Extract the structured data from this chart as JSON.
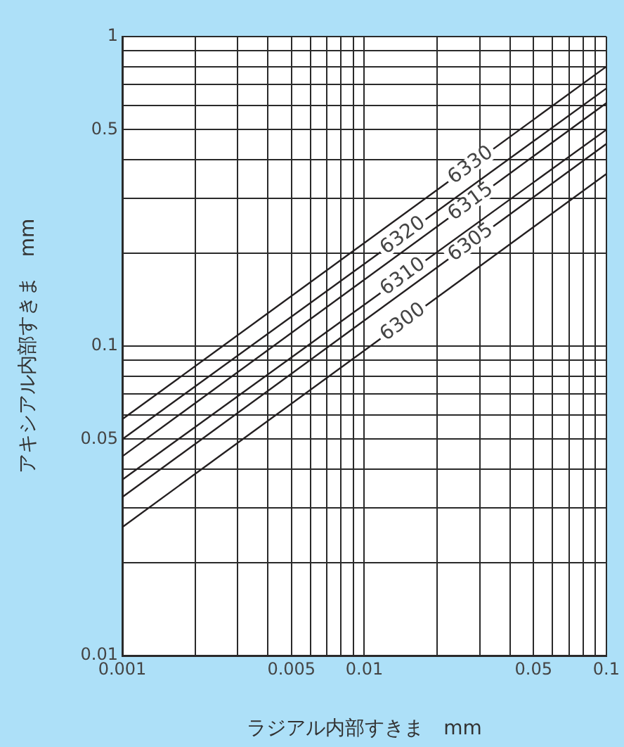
{
  "chart_data": {
    "type": "line",
    "xlabel": "ラジアル内部すきま　mm",
    "ylabel": "アキシアル内部すきま　mm",
    "log": "xy",
    "grid": true,
    "legend": false,
    "marker": "none",
    "line_style": "solid",
    "x": [
      0.001,
      0.1
    ],
    "xlim": [
      0.001,
      0.1
    ],
    "ylim": [
      0.01,
      1
    ],
    "xticks": [
      0.001,
      {
        "value": 0.002,
        "label": null
      },
      {
        "value": 0.003,
        "label": null
      },
      {
        "value": 0.004,
        "label": null
      },
      0.005,
      {
        "value": 0.006,
        "label": null
      },
      {
        "value": 0.007,
        "label": null
      },
      {
        "value": 0.008,
        "label": null
      },
      {
        "value": 0.009,
        "label": null
      },
      0.01,
      {
        "value": 0.02,
        "label": null
      },
      {
        "value": 0.03,
        "label": null
      },
      {
        "value": 0.04,
        "label": null
      },
      0.05,
      {
        "value": 0.06,
        "label": null
      },
      {
        "value": 0.07,
        "label": null
      },
      {
        "value": 0.08,
        "label": null
      },
      {
        "value": 0.09,
        "label": null
      },
      0.1
    ],
    "yticks": [
      0.01,
      {
        "value": 0.02,
        "label": null
      },
      {
        "value": 0.03,
        "label": null
      },
      {
        "value": 0.04,
        "label": null
      },
      0.05,
      {
        "value": 0.06,
        "label": null
      },
      {
        "value": 0.07,
        "label": null
      },
      {
        "value": 0.08,
        "label": null
      },
      {
        "value": 0.09,
        "label": null
      },
      0.1,
      {
        "value": 0.2,
        "label": null
      },
      {
        "value": 0.3,
        "label": null
      },
      {
        "value": 0.4,
        "label": null
      },
      0.5,
      {
        "value": 0.6,
        "label": null
      },
      {
        "value": 0.7,
        "label": null
      },
      {
        "value": 0.8,
        "label": null
      },
      {
        "value": 0.9,
        "label": null
      },
      1
    ],
    "series": [
      {
        "name": "6330",
        "color": "#231f20",
        "values": [
          0.058,
          0.8
        ]
      },
      {
        "name": "6320",
        "color": "#231f20",
        "values": [
          0.05,
          0.68
        ]
      },
      {
        "name": "6315",
        "color": "#231f20",
        "values": [
          0.044,
          0.61
        ]
      },
      {
        "name": "6310",
        "color": "#231f20",
        "values": [
          0.037,
          0.5
        ]
      },
      {
        "name": "6305",
        "color": "#231f20",
        "values": [
          0.0325,
          0.45
        ]
      },
      {
        "name": "6300",
        "color": "#231f20",
        "values": [
          0.026,
          0.36
        ]
      }
    ]
  }
}
